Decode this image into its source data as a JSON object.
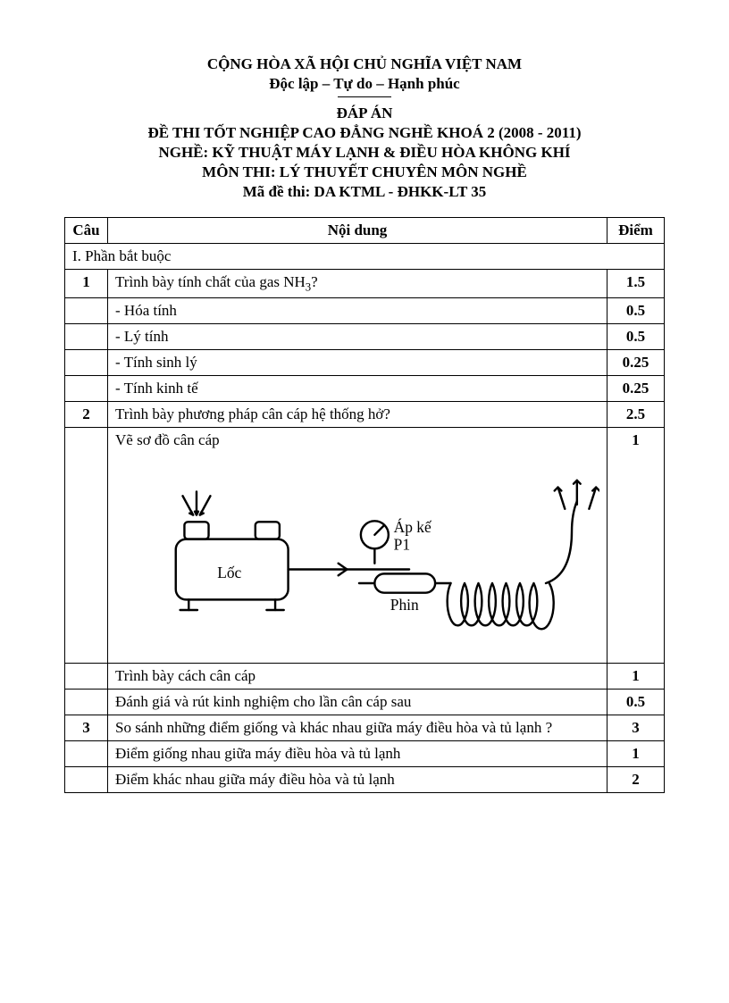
{
  "header": {
    "line1": "CỘNG HÒA XÃ HỘI CHỦ NGHĨA VIỆT NAM",
    "line2": "Độc lập – Tự do – Hạnh phúc",
    "line3": "ĐÁP ÁN",
    "line4": "ĐỀ THI TỐT NGHIỆP CAO ĐẲNG NGHỀ KHOÁ 2 (2008 - 2011)",
    "line5": "NGHỀ:  KỸ THUẬT MÁY LẠNH & ĐIỀU HÒA KHÔNG KHÍ",
    "line6": "MÔN THI:  LÝ THUYẾT CHUYÊN MÔN NGHỀ",
    "line7": "Mã đề thi:   DA KTML - ĐHKK-LT  35"
  },
  "table": {
    "columns": {
      "cau": "Câu",
      "noidung": "Nội dung",
      "diem": "Điểm"
    },
    "section": "I. Phần bắt buộc",
    "rows": [
      {
        "q": "1",
        "text": "Trình bày tính chất của gas NH₃?",
        "pts": "1.5"
      },
      {
        "q": "",
        "text": "- Hóa tính",
        "pts": "0.5"
      },
      {
        "q": "",
        "text": "- Lý tính",
        "pts": "0.5"
      },
      {
        "q": "",
        "text": "- Tính sinh lý",
        "pts": "0.25"
      },
      {
        "q": "",
        "text": "- Tính kinh tế",
        "pts": "0.25"
      },
      {
        "q": "2",
        "text": "Trình bày phương pháp cân cáp hệ thống hở?",
        "pts": "2.5"
      },
      {
        "q": "",
        "text": "Vẽ sơ đồ cân cáp",
        "pts": "1",
        "diagram": true
      },
      {
        "q": "",
        "text": "Trình bày cách cân cáp",
        "pts": "1"
      },
      {
        "q": "",
        "text": "Đánh giá và rút kinh nghiệm cho lần cân cáp sau",
        "pts": "0.5"
      },
      {
        "q": "3",
        "text": "So sánh những điểm giống và khác nhau giữa máy điều hòa và tủ lạnh ?",
        "pts": "3"
      },
      {
        "q": "",
        "text": "Điểm giống nhau giữa máy điều hòa và tủ lạnh",
        "pts": "1"
      },
      {
        "q": "",
        "text": "Điểm khác nhau giữa máy điều hòa và tủ lạnh",
        "pts": "2"
      }
    ]
  },
  "diagram": {
    "labels": {
      "loc": "Lốc",
      "apke": "Áp kế",
      "p1": "P1",
      "phin": "Phin"
    },
    "stroke": "#000000",
    "stroke_width": 2.5
  }
}
